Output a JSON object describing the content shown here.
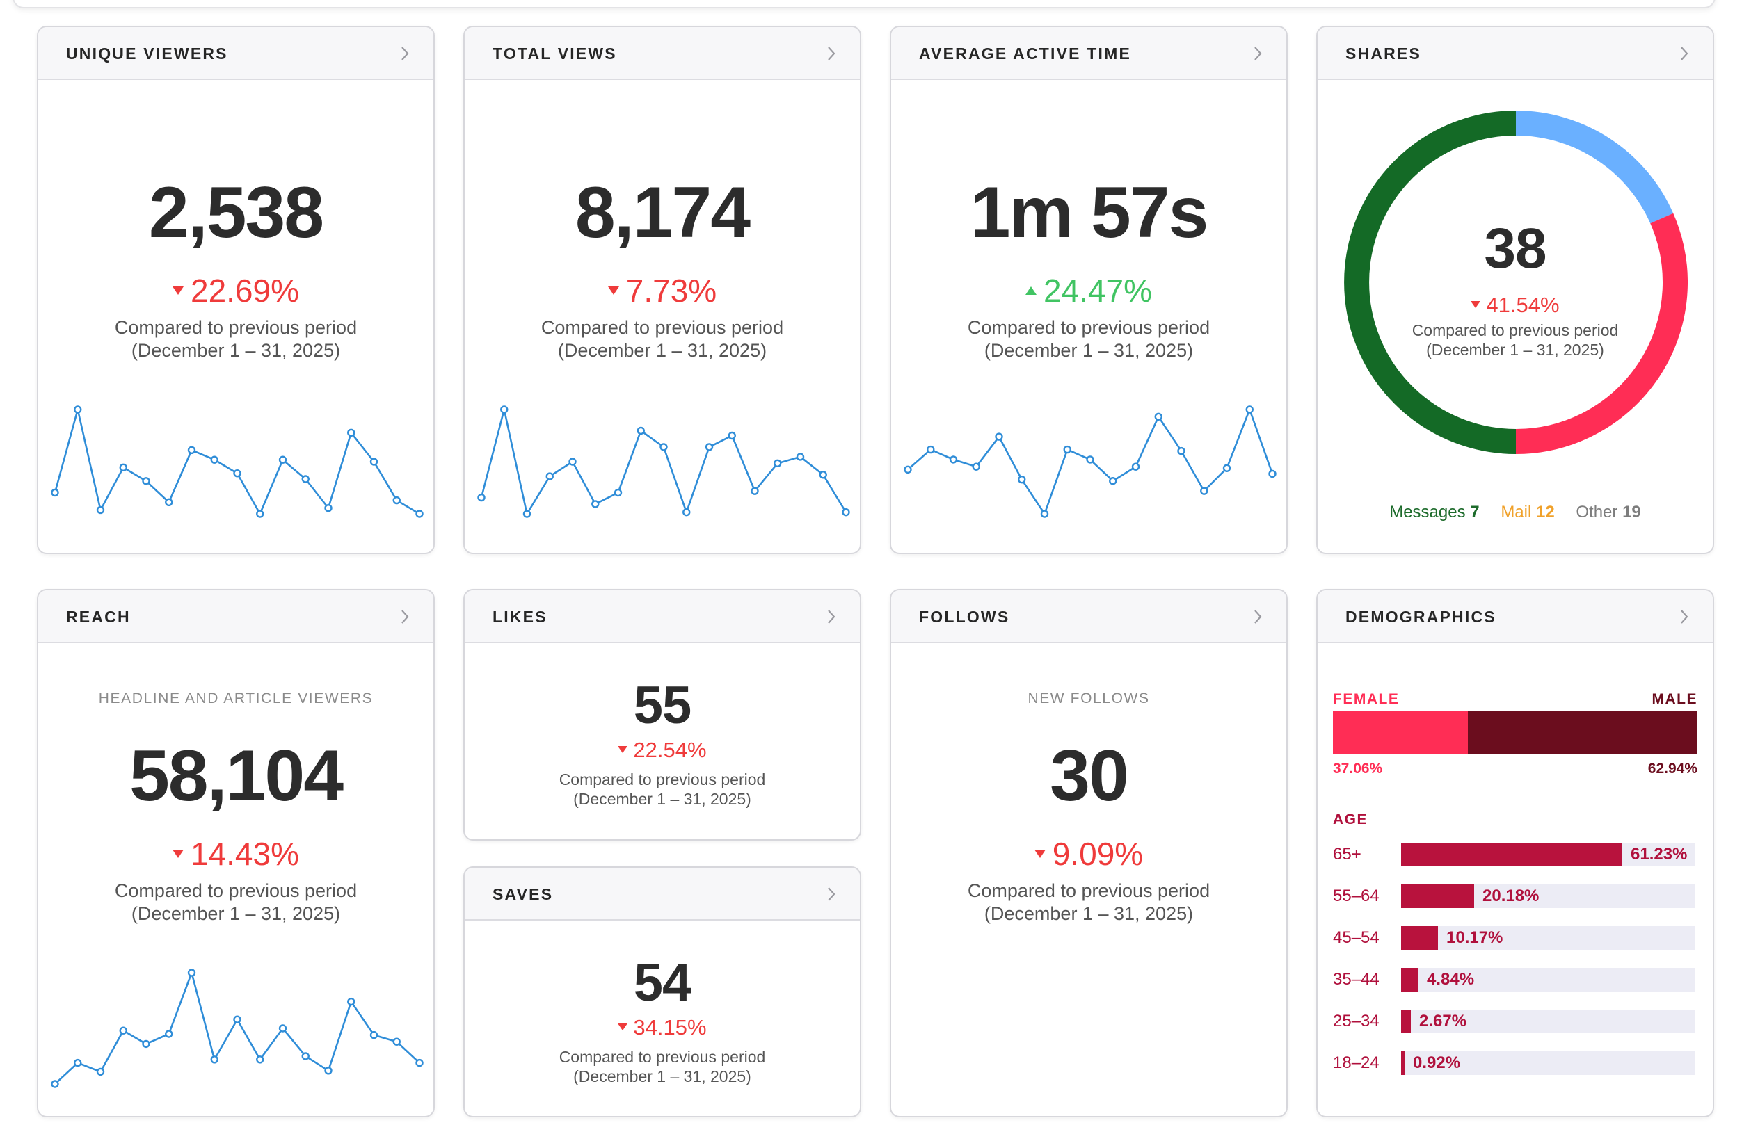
{
  "cards": {
    "unique_viewers": {
      "title": "UNIQUE VIEWERS",
      "value": "2,538",
      "delta": "22.69%",
      "delta_dir": "down",
      "compare_line1": "Compared to previous period",
      "compare_line2": "(December 1 – 31, 2025)",
      "spark": [
        12,
        55,
        3,
        25,
        18,
        7,
        34,
        29,
        22,
        1,
        29,
        19,
        4,
        43,
        28,
        8,
        1
      ]
    },
    "total_views": {
      "title": "TOTAL VIEWS",
      "value": "8,174",
      "delta": "7.73%",
      "delta_dir": "down",
      "compare_line1": "Compared to previous period",
      "compare_line2": "(December 1 – 31, 2025)",
      "spark": [
        10,
        64,
        0,
        23,
        32,
        6,
        13,
        51,
        41,
        1,
        41,
        48,
        14,
        31,
        35,
        24,
        1
      ]
    },
    "average_active_time": {
      "title": "AVERAGE ACTIVE TIME",
      "value": "1m 57s",
      "delta": "24.47%",
      "delta_dir": "up",
      "compare_line1": "Compared to previous period",
      "compare_line2": "(December 1 – 31, 2025)",
      "spark": [
        31,
        45,
        38,
        33,
        54,
        24,
        0,
        45,
        38,
        23,
        33,
        68,
        44,
        16,
        32,
        73,
        28
      ]
    },
    "shares": {
      "title": "SHARES",
      "value": "38",
      "delta": "41.54%",
      "delta_dir": "down",
      "compare_line1": "Compared to previous period",
      "compare_line2": "(December 1 – 31, 2025)",
      "legend": [
        {
          "label": "Messages",
          "value": "7",
          "color": "#1d6b2b"
        },
        {
          "label": "Mail",
          "value": "12",
          "color": "#f0a12a"
        },
        {
          "label": "Other",
          "value": "19",
          "color": "#7d7d7d"
        }
      ],
      "ring": [
        {
          "name": "segment-blue",
          "value": 7,
          "color": "#6ab0ff"
        },
        {
          "name": "segment-red",
          "value": 12,
          "color": "#ff2d55"
        },
        {
          "name": "segment-green",
          "value": 19,
          "color": "#146a26"
        }
      ]
    },
    "reach": {
      "title": "REACH",
      "sublabel": "HEADLINE AND ARTICLE VIEWERS",
      "value": "58,104",
      "delta": "14.43%",
      "delta_dir": "down",
      "compare_line1": "Compared to previous period",
      "compare_line2": "(December 1 – 31, 2025)",
      "spark": [
        0,
        19,
        11,
        48,
        36,
        45,
        100,
        22,
        58,
        22,
        50,
        25,
        12,
        74,
        44,
        38,
        19
      ]
    },
    "likes": {
      "title": "LIKES",
      "value": "55",
      "delta": "22.54%",
      "delta_dir": "down",
      "compare_line1": "Compared to previous period",
      "compare_line2": "(December 1 – 31, 2025)"
    },
    "saves": {
      "title": "SAVES",
      "value": "54",
      "delta": "34.15%",
      "delta_dir": "down",
      "compare_line1": "Compared to previous period",
      "compare_line2": "(December 1 – 31, 2025)"
    },
    "follows": {
      "title": "FOLLOWS",
      "sublabel": "NEW FOLLOWS",
      "value": "30",
      "delta": "9.09%",
      "delta_dir": "down",
      "compare_line1": "Compared to previous period",
      "compare_line2": "(December 1 – 31, 2025)"
    },
    "demographics": {
      "title": "DEMOGRAPHICS",
      "female_label": "FEMALE",
      "male_label": "MALE",
      "female_pct": "37.06%",
      "male_pct": "62.94%",
      "female_fraction": 0.3706,
      "female_color": "#ff2d55",
      "male_color": "#6b0d1e",
      "age_label": "AGE",
      "ages": [
        {
          "label": "65+",
          "pct": "61.23%",
          "fraction": 0.6123
        },
        {
          "label": "55–64",
          "pct": "20.18%",
          "fraction": 0.2018
        },
        {
          "label": "45–54",
          "pct": "10.17%",
          "fraction": 0.1017
        },
        {
          "label": "35–44",
          "pct": "4.84%",
          "fraction": 0.0484
        },
        {
          "label": "25–34",
          "pct": "2.67%",
          "fraction": 0.0267
        },
        {
          "label": "18–24",
          "pct": "0.92%",
          "fraction": 0.0092
        }
      ]
    }
  },
  "colors": {
    "spark_line": "#2f8dd8",
    "negative": "#ef3b3b",
    "positive": "#41c463",
    "age_bar": "#b8123d",
    "age_track": "#ececf5"
  }
}
